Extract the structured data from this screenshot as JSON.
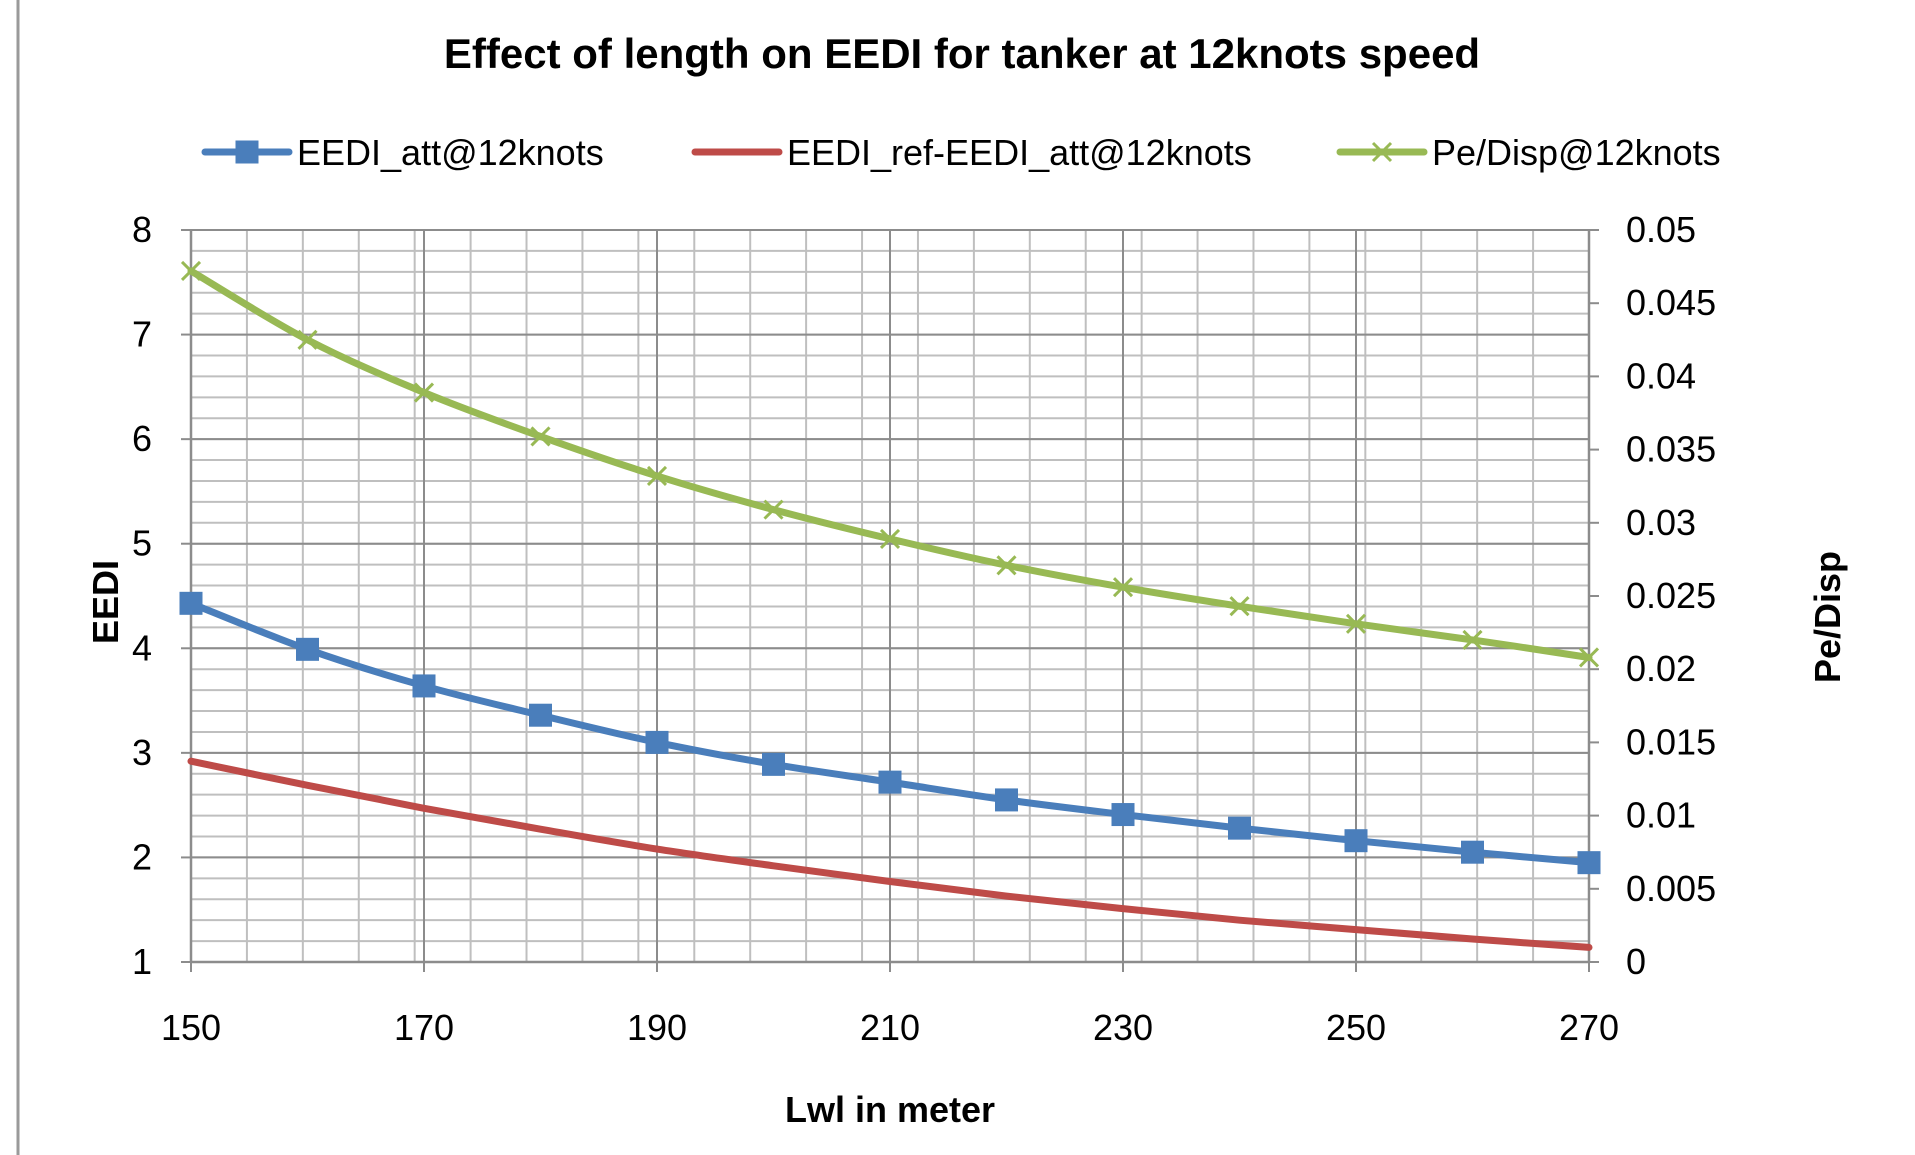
{
  "chart_data": {
    "type": "line",
    "title": "Effect of length on EEDI for tanker at 12knots speed",
    "xlabel": "Lwl in meter",
    "ylabel": "EEDI",
    "y2label": "Pe/Disp",
    "xlim": [
      150,
      270
    ],
    "ylim": [
      1,
      8
    ],
    "y2lim": [
      0,
      0.05
    ],
    "x_ticks": [
      "150",
      "170",
      "190",
      "210",
      "230",
      "250",
      "270"
    ],
    "y_ticks": [
      "1",
      "2",
      "3",
      "4",
      "5",
      "6",
      "7",
      "8"
    ],
    "y2_ticks": [
      "0",
      "0.005",
      "0.01",
      "0.015",
      "0.02",
      "0.025",
      "0.03",
      "0.035",
      "0.04",
      "0.045",
      "0.05"
    ],
    "x": [
      150,
      160,
      170,
      180,
      190,
      200,
      210,
      220,
      230,
      240,
      250,
      260,
      270
    ],
    "grid": true,
    "legend_position": "top",
    "series": [
      {
        "name": "EEDI_att@12knots",
        "axis": "left",
        "color": "#4a7ebb",
        "marker": "square",
        "values": [
          4.43,
          3.99,
          3.64,
          3.36,
          3.1,
          2.89,
          2.72,
          2.55,
          2.41,
          2.28,
          2.16,
          2.05,
          1.95
        ]
      },
      {
        "name": "EEDI_ref-EEDI_att@12knots",
        "axis": "left",
        "color": "#be4b48",
        "marker": "none",
        "values": [
          2.92,
          2.69,
          2.47,
          2.27,
          2.08,
          1.92,
          1.77,
          1.63,
          1.51,
          1.4,
          1.31,
          1.22,
          1.14
        ]
      },
      {
        "name": "Pe/Disp@12knots",
        "axis": "right",
        "color": "#98b954",
        "marker": "x",
        "values": [
          0.0472,
          0.0425,
          0.0389,
          0.0359,
          0.0332,
          0.0309,
          0.0289,
          0.0271,
          0.0256,
          0.0243,
          0.0231,
          0.022,
          0.0208
        ]
      }
    ]
  }
}
